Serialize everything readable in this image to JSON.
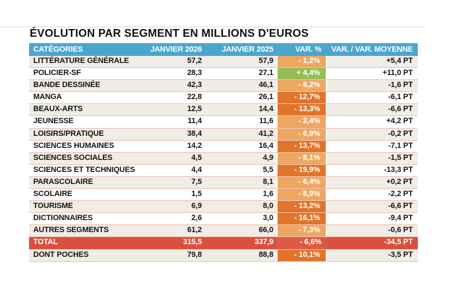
{
  "page": {
    "title": "ÉVOLUTION PAR SEGMENT EN MILLIONS D'EUROS"
  },
  "colors": {
    "header_blue": "#4BA6CD",
    "row_beige": "#F1ECE5",
    "separator": "#F0C2B0",
    "light_orange": "#EDA763",
    "dark_orange": "#E0742B",
    "green": "#94BE55",
    "total_red": "#D9503E",
    "total_var_red": "#DC5A45",
    "top_rule": "#EDEDED"
  },
  "table": {
    "headers": {
      "categories": "CATÉGORIES",
      "jan2026": "JANVIER 2026",
      "jan2025": "JANVIER 2025",
      "var_pct": "VAR. %",
      "var_avg": "VAR. / VAR. MOYENNE"
    },
    "rows": [
      {
        "category": "LITTÉRATURE GÉNÉRALE",
        "jan2026": "57,2",
        "jan2025": "57,9",
        "var_pct": "- 1,2%",
        "var_tone": "light",
        "var_avg": "+5,4 PT"
      },
      {
        "category": "POLICIER-SF",
        "jan2026": "28,3",
        "jan2025": "27,1",
        "var_pct": "+ 4,4%",
        "var_tone": "green",
        "var_avg": "+11,0 PT"
      },
      {
        "category": "BANDE DESSINÉE",
        "jan2026": "42,3",
        "jan2025": "46,1",
        "var_pct": "- 8,2%",
        "var_tone": "light",
        "var_avg": "-1,6 PT"
      },
      {
        "category": "MANGA",
        "jan2026": "22,8",
        "jan2025": "26,1",
        "var_pct": "- 12,7%",
        "var_tone": "dark",
        "var_avg": "-6,1 PT"
      },
      {
        "category": "BEAUX-ARTS",
        "jan2026": "12,5",
        "jan2025": "14,4",
        "var_pct": "- 13,3%",
        "var_tone": "dark",
        "var_avg": "-6,6 PT"
      },
      {
        "category": "JEUNESSE",
        "jan2026": "11,4",
        "jan2025": "11,6",
        "var_pct": "- 2,4%",
        "var_tone": "light",
        "var_avg": "+4,2 PT"
      },
      {
        "category": "LOISIRS/PRATIQUE",
        "jan2026": "38,4",
        "jan2025": "41,2",
        "var_pct": "- 6,9%",
        "var_tone": "light",
        "var_avg": "-0,2 PT"
      },
      {
        "category": "SCIENCES HUMAINES",
        "jan2026": "14,2",
        "jan2025": "16,4",
        "var_pct": "- 13,7%",
        "var_tone": "dark",
        "var_avg": "-7,1 PT"
      },
      {
        "category": "SCIENCES SOCIALES",
        "jan2026": "4,5",
        "jan2025": "4,9",
        "var_pct": "- 8,1%",
        "var_tone": "light",
        "var_avg": "-1,5 PT"
      },
      {
        "category": "SCIENCES ET TECHNIQUES",
        "jan2026": "4,4",
        "jan2025": "5,5",
        "var_pct": "- 19,9%",
        "var_tone": "dark",
        "var_avg": "-13,3 PT"
      },
      {
        "category": "PARASCOLAIRE",
        "jan2026": "7,5",
        "jan2025": "8,1",
        "var_pct": "- 6,4%",
        "var_tone": "light",
        "var_avg": "+0,2 PT"
      },
      {
        "category": "SCOLAIRE",
        "jan2026": "1,5",
        "jan2025": "1,6",
        "var_pct": "- 8,9%",
        "var_tone": "light",
        "var_avg": "-2,2 PT"
      },
      {
        "category": "TOURISME",
        "jan2026": "6,9",
        "jan2025": "8,0",
        "var_pct": "- 13,2%",
        "var_tone": "dark",
        "var_avg": "-6,6 PT"
      },
      {
        "category": "DICTIONNAIRES",
        "jan2026": "2,6",
        "jan2025": "3,0",
        "var_pct": "- 16,1%",
        "var_tone": "dark",
        "var_avg": "-9,4 PT"
      },
      {
        "category": "AUTRES SEGMENTS",
        "jan2026": "61,2",
        "jan2025": "66,0",
        "var_pct": "- 7,3%",
        "var_tone": "light",
        "var_avg": "-0,6 PT"
      }
    ],
    "total_row": {
      "category": "TOTAL",
      "jan2026": "315,5",
      "jan2025": "337,9",
      "var_pct": "- 6,6%",
      "var_tone": "total",
      "var_avg": "-34,5 PT"
    },
    "poches_row": {
      "category": "DONT POCHES",
      "jan2026": "79,8",
      "jan2025": "88,8",
      "var_pct": "- 10,1%",
      "var_tone": "dark",
      "var_avg": "-3,5 PT"
    }
  },
  "chart_data": {
    "type": "table",
    "title": "ÉVOLUTION PAR SEGMENT EN MILLIONS D'EUROS",
    "columns": [
      "CATÉGORIES",
      "JANVIER 2026",
      "JANVIER 2025",
      "VAR. %",
      "VAR. / VAR. MOYENNE (PT)"
    ],
    "rows": [
      [
        "LITTÉRATURE GÉNÉRALE",
        57.2,
        57.9,
        -1.2,
        5.4
      ],
      [
        "POLICIER-SF",
        28.3,
        27.1,
        4.4,
        11.0
      ],
      [
        "BANDE DESSINÉE",
        42.3,
        46.1,
        -8.2,
        -1.6
      ],
      [
        "MANGA",
        22.8,
        26.1,
        -12.7,
        -6.1
      ],
      [
        "BEAUX-ARTS",
        12.5,
        14.4,
        -13.3,
        -6.6
      ],
      [
        "JEUNESSE",
        11.4,
        11.6,
        -2.4,
        4.2
      ],
      [
        "LOISIRS/PRATIQUE",
        38.4,
        41.2,
        -6.9,
        -0.2
      ],
      [
        "SCIENCES HUMAINES",
        14.2,
        16.4,
        -13.7,
        -7.1
      ],
      [
        "SCIENCES SOCIALES",
        4.5,
        4.9,
        -8.1,
        -1.5
      ],
      [
        "SCIENCES ET TECHNIQUES",
        4.4,
        5.5,
        -19.9,
        -13.3
      ],
      [
        "PARASCOLAIRE",
        7.5,
        8.1,
        -6.4,
        0.2
      ],
      [
        "SCOLAIRE",
        1.5,
        1.6,
        -8.9,
        -2.2
      ],
      [
        "TOURISME",
        6.9,
        8.0,
        -13.2,
        -6.6
      ],
      [
        "DICTIONNAIRES",
        2.6,
        3.0,
        -16.1,
        -9.4
      ],
      [
        "AUTRES SEGMENTS",
        61.2,
        66.0,
        -7.3,
        -0.6
      ],
      [
        "TOTAL",
        315.5,
        337.9,
        -6.6,
        -34.5
      ],
      [
        "DONT POCHES",
        79.8,
        88.8,
        -10.1,
        -3.5
      ]
    ],
    "units": {
      "values": "millions d'euros",
      "var": "%",
      "var_moyenne": "PT"
    },
    "color_coding": {
      "positive": "green",
      "negative_small": "light-orange",
      "negative_large": "dark-orange",
      "total": "red"
    }
  }
}
